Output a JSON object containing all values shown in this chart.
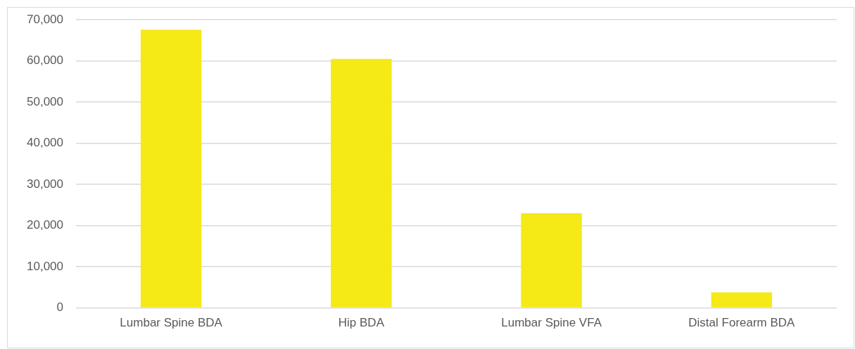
{
  "chart_data": {
    "type": "bar",
    "categories": [
      "Lumbar Spine BDA",
      "Hip BDA",
      "Lumbar Spine VFA",
      "Distal Forearm BDA"
    ],
    "values": [
      67600,
      60500,
      23000,
      3800
    ],
    "color": "#f5e916",
    "ylim": [
      0,
      70000
    ],
    "yticks": [
      0,
      {
        "value": 10000,
        "label": "10,000"
      },
      {
        "value": 20000,
        "label": "20,000"
      },
      {
        "value": 30000,
        "label": "30,000"
      },
      {
        "value": 40000,
        "label": "40,000"
      },
      {
        "value": 50000,
        "label": "50,000"
      },
      {
        "value": 60000,
        "label": "60,000"
      },
      {
        "value": 70000,
        "label": "70,000"
      }
    ],
    "grid": "y",
    "legend": false
  }
}
